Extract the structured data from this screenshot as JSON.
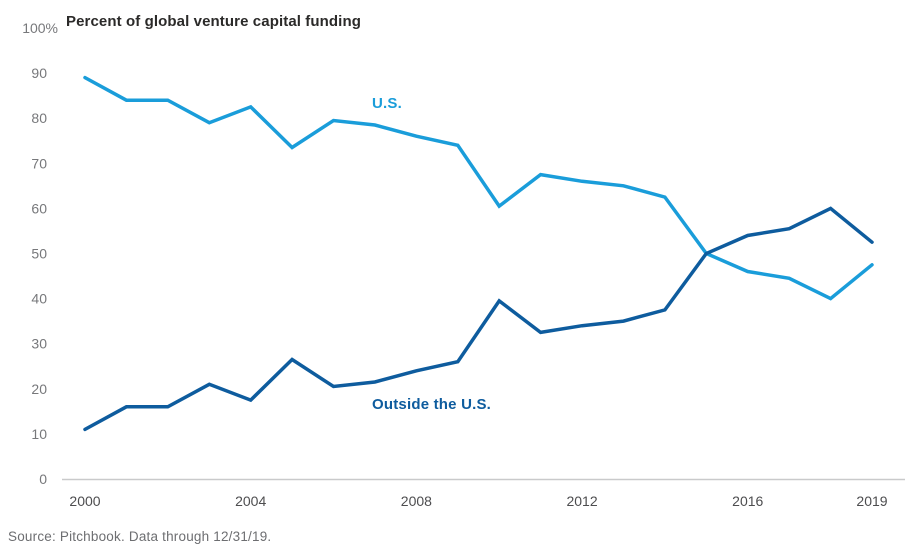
{
  "title": "Percent of global venture capital funding",
  "source": "Source: Pitchbook. Data through 12/31/19.",
  "colors": {
    "us_line": "#1A9DDA",
    "outside_line": "#0E5C9E",
    "axis": "#C9CACB",
    "y_tick_label": "#77787B",
    "x_tick_label": "#4D4D4F",
    "title_text": "#2B2A29",
    "source_text": "#6D6E71"
  },
  "chart_data": {
    "type": "line",
    "title": "Percent of global venture capital funding",
    "xlabel": "",
    "ylabel": "Percent of global venture capital funding",
    "ylim": [
      0,
      100
    ],
    "grid": false,
    "legend": "inline-labels",
    "x": [
      2000,
      2001,
      2002,
      2003,
      2004,
      2005,
      2006,
      2007,
      2008,
      2009,
      2010,
      2011,
      2012,
      2013,
      2014,
      2015,
      2016,
      2017,
      2018,
      2019
    ],
    "series": [
      {
        "id": "us",
        "name": "U.S.",
        "color_key": "us_line",
        "values": [
          89,
          84,
          84,
          79,
          82.5,
          73.5,
          79.5,
          78.5,
          76,
          74,
          60.5,
          67.5,
          66,
          65,
          62.5,
          50,
          46,
          44.5,
          40,
          47.5
        ]
      },
      {
        "id": "outside-us",
        "name": "Outside the U.S.",
        "color_key": "outside_line",
        "values": [
          11,
          16,
          16,
          21,
          17.5,
          26.5,
          20.5,
          21.5,
          24,
          26,
          39.5,
          32.5,
          34,
          35,
          37.5,
          50,
          54,
          55.5,
          60,
          52.5
        ]
      }
    ],
    "x_ticks": [
      2000,
      2004,
      2008,
      2012,
      2016,
      2019
    ],
    "y_ticks": [
      {
        "value": 100,
        "label": "100%"
      },
      {
        "value": 90,
        "label": "90"
      },
      {
        "value": 80,
        "label": "80"
      },
      {
        "value": 70,
        "label": "70"
      },
      {
        "value": 60,
        "label": "60"
      },
      {
        "value": 50,
        "label": "50"
      },
      {
        "value": 40,
        "label": "40"
      },
      {
        "value": 30,
        "label": "30"
      },
      {
        "value": 20,
        "label": "20"
      },
      {
        "value": 10,
        "label": "10"
      },
      {
        "value": 0,
        "label": "0"
      }
    ]
  }
}
